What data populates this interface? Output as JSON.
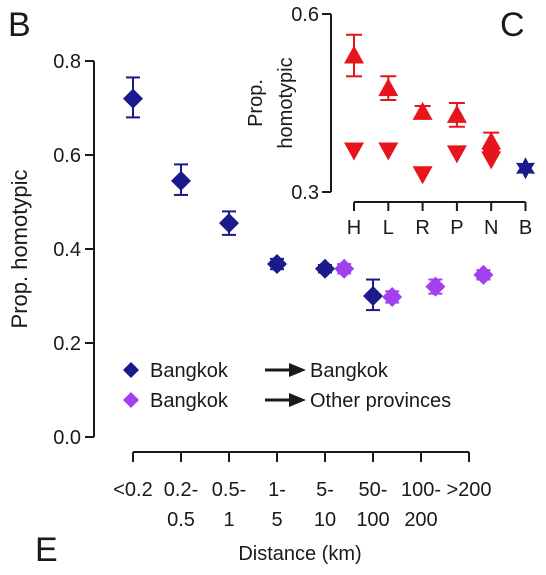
{
  "panel_labels": {
    "main": "B",
    "inset": "C",
    "bottom": "E"
  },
  "colors": {
    "bangkok": "#1a1a8c",
    "other": "#a040ee",
    "inset": "#e8141c",
    "inset_reference": "#1a1a8c",
    "axis": "#1a1a1a"
  },
  "chart_data": [
    {
      "type": "scatter",
      "ylabel": "Prop. homotypic",
      "xlabel": "Distance (km)",
      "ylim": [
        0.0,
        0.8
      ],
      "yticks": [
        "0.0",
        "0.2",
        "0.4",
        "0.6",
        "0.8"
      ],
      "categories": [
        [
          "<0.2"
        ],
        [
          "0.2-",
          "0.5"
        ],
        [
          "0.5-",
          "1"
        ],
        [
          "1-",
          "5"
        ],
        [
          "5-",
          "10"
        ],
        [
          "50-",
          "100"
        ],
        [
          "100-",
          "200"
        ],
        [
          ">200"
        ]
      ],
      "legend_position": "bottom-left",
      "series": [
        {
          "name_parts": [
            "Bangkok",
            "Bangkok"
          ],
          "color": "#1a1a8c",
          "points": [
            {
              "x": 0,
              "y": 0.72,
              "lo": 0.68,
              "hi": 0.765
            },
            {
              "x": 1,
              "y": 0.545,
              "lo": 0.515,
              "hi": 0.58
            },
            {
              "x": 2,
              "y": 0.455,
              "lo": 0.43,
              "hi": 0.48
            },
            {
              "x": 3,
              "y": 0.368,
              "lo": 0.357,
              "hi": 0.379
            },
            {
              "x": 4,
              "y": 0.358,
              "lo": 0.35,
              "hi": 0.366
            },
            {
              "x": 5,
              "y": 0.3,
              "lo": 0.27,
              "hi": 0.335
            }
          ]
        },
        {
          "name_parts": [
            "Bangkok",
            "Other provinces"
          ],
          "color": "#a040ee",
          "points": [
            {
              "x": 4.4,
              "y": 0.358,
              "lo": 0.348,
              "hi": 0.368
            },
            {
              "x": 5.4,
              "y": 0.298,
              "lo": 0.286,
              "hi": 0.31
            },
            {
              "x": 6.3,
              "y": 0.32,
              "lo": 0.305,
              "hi": 0.335
            },
            {
              "x": 7.3,
              "y": 0.345,
              "lo": 0.335,
              "hi": 0.355
            }
          ]
        }
      ]
    },
    {
      "type": "scatter",
      "ylabel_lines": [
        "Prop.",
        "homotypic"
      ],
      "ylim": [
        0.3,
        0.6
      ],
      "yticks": [
        "0.3",
        "0.6"
      ],
      "categories": [
        "H",
        "L",
        "R",
        "P",
        "N",
        "B"
      ],
      "series": [
        {
          "marker": "triangle-up",
          "color": "#e8141c",
          "points": [
            {
              "x": 0,
              "y": 0.53,
              "lo": 0.495,
              "hi": 0.565
            },
            {
              "x": 1,
              "y": 0.475,
              "lo": 0.455,
              "hi": 0.495
            },
            {
              "x": 2,
              "y": 0.435,
              "lo": 0.425,
              "hi": 0.445
            },
            {
              "x": 3,
              "y": 0.43,
              "lo": 0.41,
              "hi": 0.45
            },
            {
              "x": 4,
              "y": 0.385,
              "lo": 0.37,
              "hi": 0.4
            }
          ]
        },
        {
          "marker": "triangle-down",
          "color": "#e8141c",
          "points": [
            {
              "x": 0,
              "y": 0.37
            },
            {
              "x": 1,
              "y": 0.37
            },
            {
              "x": 2,
              "y": 0.33
            },
            {
              "x": 3,
              "y": 0.365
            },
            {
              "x": 4,
              "y": 0.355
            }
          ]
        },
        {
          "marker": "star",
          "color": "#1a1a8c",
          "points": [
            {
              "x": 5,
              "y": 0.34
            }
          ]
        }
      ]
    }
  ]
}
